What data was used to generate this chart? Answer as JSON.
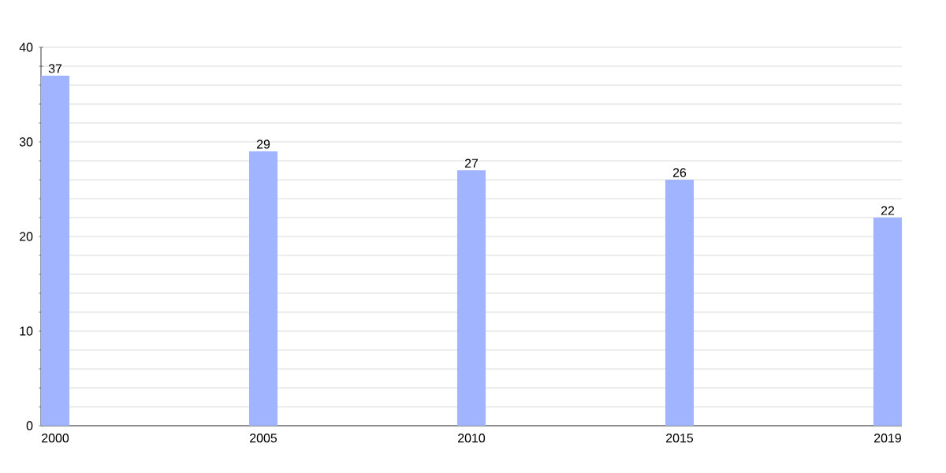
{
  "chart_data": {
    "type": "bar",
    "categories": [
      "2000",
      "2005",
      "2010",
      "2015",
      "2019"
    ],
    "values": [
      37,
      29,
      27,
      26,
      22
    ],
    "color": "#a0b4ff",
    "data_labels": true,
    "grid": "y",
    "ylim": [
      0,
      40
    ],
    "yticks": [
      0,
      {
        "value": 2,
        "label": null
      },
      {
        "value": 4,
        "label": null
      },
      {
        "value": 6,
        "label": null
      },
      {
        "value": 8,
        "label": null
      },
      10,
      {
        "value": 12,
        "label": null
      },
      {
        "value": 14,
        "label": null
      },
      {
        "value": 16,
        "label": null
      },
      {
        "value": 18,
        "label": null
      },
      20,
      {
        "value": 22,
        "label": null
      },
      {
        "value": 24,
        "label": null
      },
      {
        "value": 26,
        "label": null
      },
      {
        "value": 28,
        "label": null
      },
      30,
      {
        "value": 32,
        "label": null
      },
      {
        "value": 34,
        "label": null
      },
      {
        "value": 36,
        "label": null
      },
      {
        "value": 38,
        "label": null
      },
      40
    ]
  }
}
